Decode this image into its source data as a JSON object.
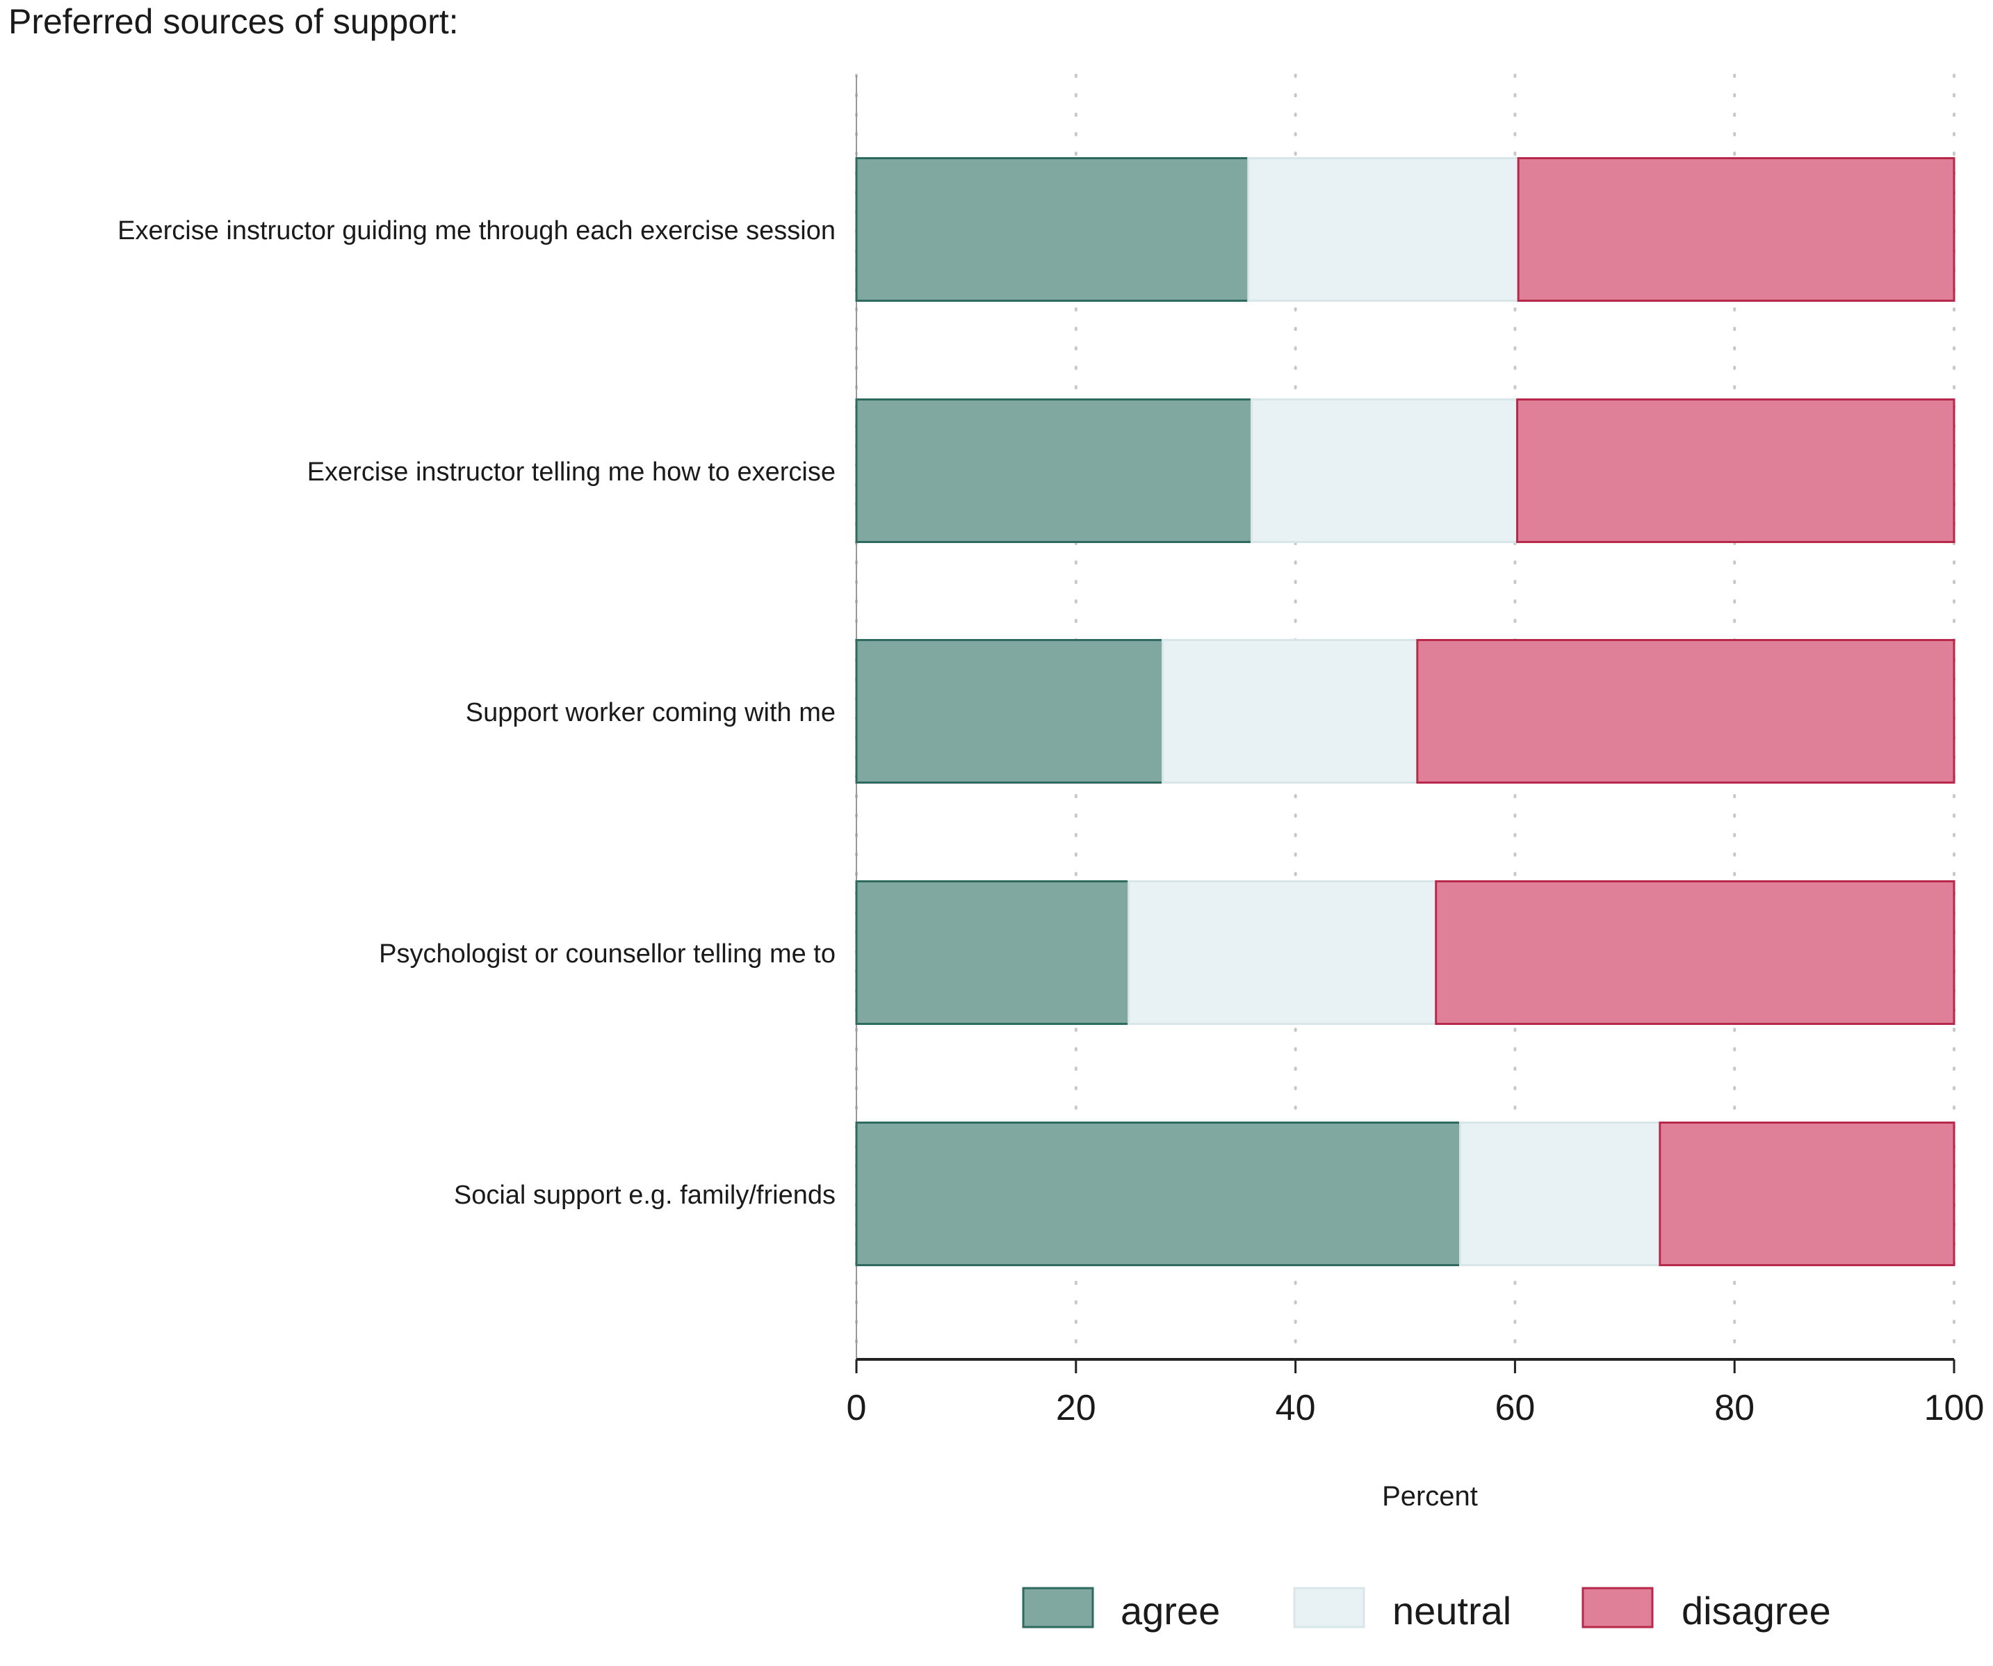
{
  "chart_data": {
    "type": "bar",
    "orientation": "horizontal",
    "stacked": true,
    "title": "Preferred sources of support:",
    "xlabel": "Percent",
    "ylabel": "",
    "xlim": [
      0,
      100
    ],
    "xticks": [
      0,
      20,
      40,
      60,
      80,
      100
    ],
    "grid": true,
    "legend_position": "bottom",
    "categories": [
      "Exercise instructor guiding me through each exercise session",
      "Exercise instructor telling me how to  exercise",
      "Support worker coming with me",
      "Psychologist or counsellor telling me to",
      "Social support e.g. family/friends"
    ],
    "series": [
      {
        "name": "agree",
        "color": "#80a8a0",
        "stroke": "#2e6a5f",
        "values": [
          35.7,
          36.0,
          27.9,
          24.8,
          55.0
        ]
      },
      {
        "name": "neutral",
        "color": "#e8f1f3",
        "stroke": "#d8e6ea",
        "values": [
          24.6,
          24.2,
          23.2,
          28.0,
          18.2
        ]
      },
      {
        "name": "disagree",
        "color": "#e08098",
        "stroke": "#b8284a",
        "values": [
          39.7,
          39.8,
          48.9,
          47.2,
          26.8
        ]
      }
    ]
  }
}
